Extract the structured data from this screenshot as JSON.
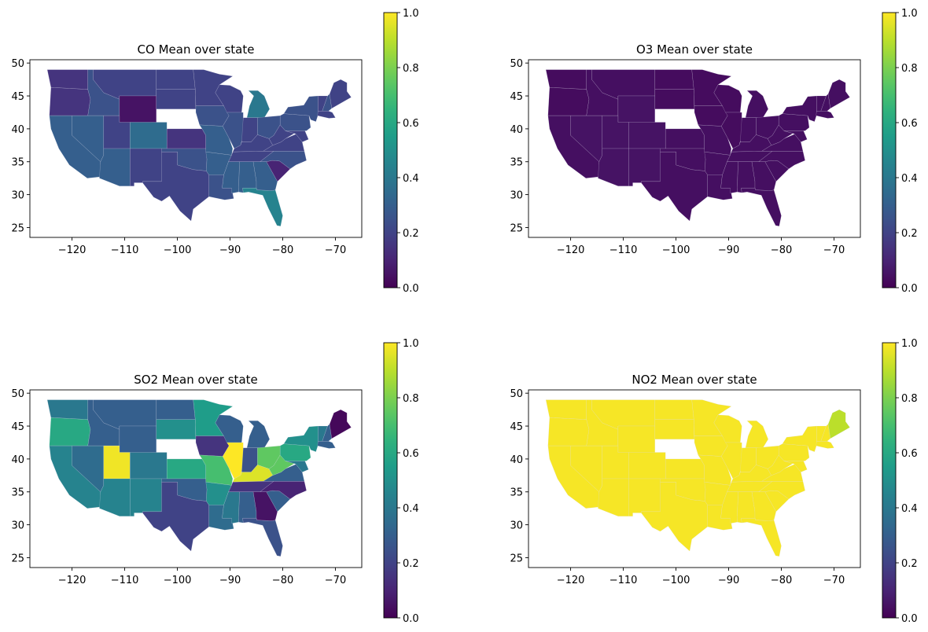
{
  "chart_data": [
    {
      "type": "choropleth",
      "title": "CO Mean over state",
      "xlabel": "",
      "ylabel": "",
      "xlim": [
        -128,
        -65
      ],
      "ylim": [
        23.5,
        50.5
      ],
      "xticks": [
        "−120",
        "−110",
        "−100",
        "−90",
        "−80",
        "−70"
      ],
      "xtick_values": [
        -120,
        -110,
        -100,
        -90,
        -80,
        -70
      ],
      "yticks": [
        "25",
        "30",
        "35",
        "40",
        "45",
        "50"
      ],
      "ytick_values": [
        25,
        30,
        35,
        40,
        45,
        50
      ],
      "colorbar": {
        "range": [
          0,
          1
        ],
        "ticks": [
          "0.0",
          "0.2",
          "0.4",
          "0.6",
          "0.8",
          "1.0"
        ],
        "tick_values": [
          0,
          0.2,
          0.4,
          0.6,
          0.8,
          1.0
        ],
        "colormap": "viridis"
      },
      "state_values": {
        "WA": 0.15,
        "OR": 0.15,
        "ID": 0.25,
        "MT": 0.2,
        "WY": 0.05,
        "CA": 0.3,
        "NV": 0.3,
        "UT": 0.2,
        "AZ": 0.3,
        "CO": 0.35,
        "NM": 0.2,
        "ND": 0.2,
        "SD": 0.2,
        "KS": 0.15,
        "OK": 0.25,
        "TX": 0.2,
        "MN": 0.2,
        "IA": 0.25,
        "MO": 0.3,
        "AR": 0.3,
        "LA": 0.25,
        "WI": 0.2,
        "IL": 0.25,
        "MI": 0.4,
        "IN": 0.2,
        "OH": 0.25,
        "KY": 0.2,
        "TN": 0.2,
        "MS": 0.3,
        "AL": 0.3,
        "GA": 0.3,
        "FL": 0.45,
        "SC": 0.1,
        "NC": 0.25,
        "VA": 0.2,
        "WV": 0.2,
        "PA": 0.25,
        "NY": 0.25,
        "MD": 0.2,
        "VT": 0.2,
        "NH": 0.25,
        "ME": 0.2,
        "MA": 0.2
      }
    },
    {
      "type": "choropleth",
      "title": "O3 Mean over state",
      "xlabel": "",
      "ylabel": "",
      "xlim": [
        -128,
        -65
      ],
      "ylim": [
        23.5,
        50.5
      ],
      "xticks": [
        "−120",
        "−110",
        "−100",
        "−90",
        "−80",
        "−70"
      ],
      "xtick_values": [
        -120,
        -110,
        -100,
        -90,
        -80,
        -70
      ],
      "yticks": [
        "25",
        "30",
        "35",
        "40",
        "45",
        "50"
      ],
      "ytick_values": [
        25,
        30,
        35,
        40,
        45,
        50
      ],
      "colorbar": {
        "range": [
          0,
          1
        ],
        "ticks": [
          "0.0",
          "0.2",
          "0.4",
          "0.6",
          "0.8",
          "1.0"
        ],
        "tick_values": [
          0,
          0.2,
          0.4,
          0.6,
          0.8,
          1.0
        ],
        "colormap": "viridis"
      },
      "state_values": {
        "WA": 0.03,
        "OR": 0.03,
        "ID": 0.04,
        "MT": 0.04,
        "WY": 0.05,
        "CA": 0.04,
        "NV": 0.05,
        "UT": 0.05,
        "AZ": 0.05,
        "CO": 0.05,
        "NM": 0.05,
        "ND": 0.03,
        "SD": 0.03,
        "KS": 0.04,
        "OK": 0.04,
        "TX": 0.04,
        "MN": 0.03,
        "IA": 0.03,
        "MO": 0.04,
        "AR": 0.04,
        "LA": 0.04,
        "WI": 0.03,
        "IL": 0.03,
        "MI": 0.04,
        "IN": 0.04,
        "OH": 0.04,
        "KY": 0.04,
        "TN": 0.04,
        "MS": 0.04,
        "AL": 0.04,
        "GA": 0.04,
        "FL": 0.04,
        "SC": 0.04,
        "NC": 0.04,
        "VA": 0.04,
        "WV": 0.04,
        "PA": 0.04,
        "NY": 0.04,
        "MD": 0.04,
        "VT": 0.04,
        "NH": 0.04,
        "ME": 0.04,
        "MA": 0.04
      }
    },
    {
      "type": "choropleth",
      "title": "SO2 Mean over state",
      "xlabel": "",
      "ylabel": "",
      "xlim": [
        -128,
        -65
      ],
      "ylim": [
        23.5,
        50.5
      ],
      "xticks": [
        "−120",
        "−110",
        "−100",
        "−90",
        "−80",
        "−70"
      ],
      "xtick_values": [
        -120,
        -110,
        -100,
        -90,
        -80,
        -70
      ],
      "yticks": [
        "25",
        "30",
        "35",
        "40",
        "45",
        "50"
      ],
      "ytick_values": [
        25,
        30,
        35,
        40,
        45,
        50
      ],
      "colorbar": {
        "range": [
          0,
          1
        ],
        "ticks": [
          "0.0",
          "0.2",
          "0.4",
          "0.6",
          "0.8",
          "1.0"
        ],
        "tick_values": [
          0,
          0.2,
          0.4,
          0.6,
          0.8,
          1.0
        ],
        "colormap": "viridis"
      },
      "state_values": {
        "WA": 0.4,
        "OR": 0.6,
        "ID": 0.3,
        "MT": 0.3,
        "WY": 0.3,
        "CA": 0.45,
        "NV": 0.35,
        "UT": 0.98,
        "AZ": 0.45,
        "CO": 0.4,
        "NM": 0.45,
        "ND": 0.3,
        "SD": 0.5,
        "KS": 0.6,
        "OK": 0.3,
        "TX": 0.2,
        "MN": 0.55,
        "IA": 0.15,
        "MO": 0.7,
        "AR": 0.5,
        "LA": 0.35,
        "WI": 0.3,
        "IL": 1.0,
        "MI": 0.3,
        "IN": 0.25,
        "OH": 0.75,
        "KY": 0.95,
        "TN": 0.15,
        "MS": 0.4,
        "AL": 0.3,
        "GA": 0.05,
        "FL": 0.25,
        "SC": 0.3,
        "NC": 0.1,
        "VA": 0.3,
        "WV": 0.75,
        "PA": 0.6,
        "NY": 0.5,
        "MD": 0.4,
        "VT": 0.4,
        "NH": 0.3,
        "ME": 0.02,
        "MA": 0.3
      }
    },
    {
      "type": "choropleth",
      "title": "NO2 Mean over state",
      "xlabel": "",
      "ylabel": "",
      "xlim": [
        -128,
        -65
      ],
      "ylim": [
        23.5,
        50.5
      ],
      "xticks": [
        "−120",
        "−110",
        "−100",
        "−90",
        "−80",
        "−70"
      ],
      "xtick_values": [
        -120,
        -110,
        -100,
        -90,
        -80,
        -70
      ],
      "yticks": [
        "25",
        "30",
        "35",
        "40",
        "45",
        "50"
      ],
      "ytick_values": [
        25,
        30,
        35,
        40,
        45,
        50
      ],
      "colorbar": {
        "range": [
          0,
          1
        ],
        "ticks": [
          "0.0",
          "0.2",
          "0.4",
          "0.6",
          "0.8",
          "1.0"
        ],
        "tick_values": [
          0,
          0.2,
          0.4,
          0.6,
          0.8,
          1.0
        ],
        "colormap": "viridis"
      },
      "state_values": {
        "WA": 0.99,
        "OR": 0.99,
        "ID": 0.99,
        "MT": 0.99,
        "WY": 0.99,
        "CA": 0.99,
        "NV": 0.99,
        "UT": 0.99,
        "AZ": 0.99,
        "CO": 0.99,
        "NM": 0.99,
        "ND": 0.99,
        "SD": 0.99,
        "KS": 0.99,
        "OK": 0.99,
        "TX": 0.99,
        "MN": 0.99,
        "IA": 0.99,
        "MO": 0.99,
        "AR": 0.99,
        "LA": 0.99,
        "WI": 0.99,
        "IL": 0.99,
        "MI": 0.99,
        "IN": 0.99,
        "OH": 0.99,
        "KY": 0.99,
        "TN": 0.99,
        "MS": 0.99,
        "AL": 0.99,
        "GA": 0.99,
        "FL": 0.99,
        "SC": 0.99,
        "NC": 0.99,
        "VA": 0.99,
        "WV": 0.99,
        "PA": 0.99,
        "NY": 0.99,
        "MD": 0.99,
        "VT": 0.99,
        "NH": 0.99,
        "ME": 0.9,
        "MA": 0.99
      }
    }
  ]
}
